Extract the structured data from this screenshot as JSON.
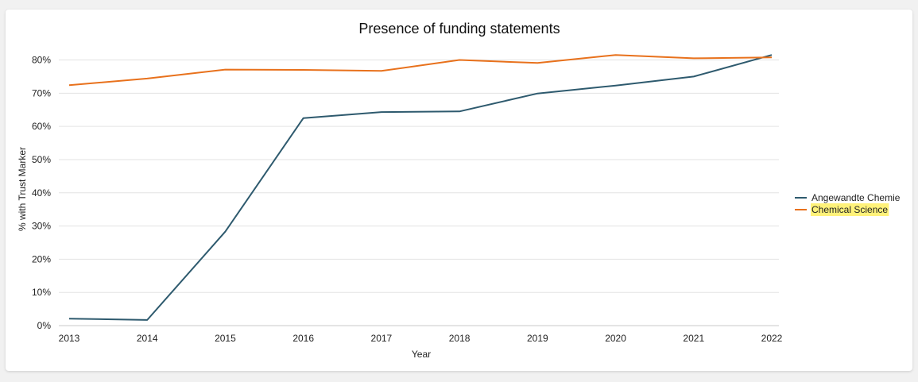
{
  "chart_data": {
    "type": "line",
    "title": "Presence of funding statements",
    "xlabel": "Year",
    "ylabel": "% with Trust Marker",
    "x": [
      "2013",
      "2014",
      "2015",
      "2016",
      "2017",
      "2018",
      "2019",
      "2020",
      "2021",
      "2022"
    ],
    "ylim": [
      0,
      80
    ],
    "yticks": [
      0,
      10,
      20,
      30,
      40,
      50,
      60,
      70,
      80
    ],
    "ytick_labels": [
      "0%",
      "10%",
      "20%",
      "30%",
      "40%",
      "50%",
      "60%",
      "70%",
      "80%"
    ],
    "grid": true,
    "legend_position": "right",
    "series": [
      {
        "name": "Angewandte Chemie",
        "color": "#2e5a6e",
        "values": [
          2.1,
          1.7,
          28.3,
          62.5,
          64.3,
          64.5,
          69.9,
          72.3,
          75.0,
          81.5
        ]
      },
      {
        "name": "Chemical Science",
        "color": "#e8711c",
        "highlight": "#fff27a",
        "values": [
          72.4,
          74.4,
          77.1,
          77.0,
          76.7,
          80.0,
          79.1,
          81.5,
          80.5,
          80.8
        ]
      }
    ]
  }
}
